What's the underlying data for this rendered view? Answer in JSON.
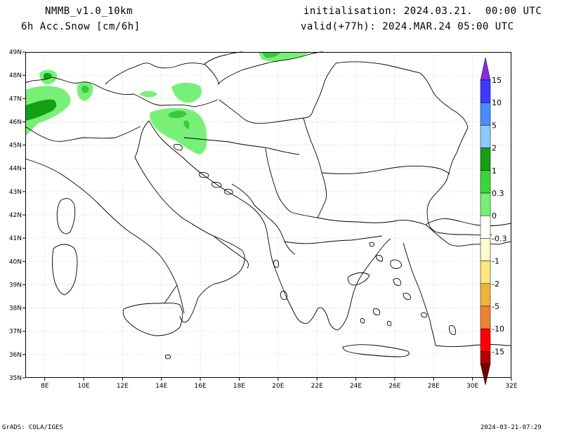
{
  "header": {
    "model": "NMMB_v1.0_10km",
    "variable": "6h Acc.Snow [cm/6h]",
    "init": "initialisation: 2024.03.21.  00:00 UTC",
    "valid": "valid(+77h): 2024.MAR.24 05:00 UTC"
  },
  "footer": {
    "left": "GrADS: COLA/IGES",
    "right": "2024-03-21-07:29"
  },
  "axes": {
    "lon_ticks": [
      "8E",
      "10E",
      "12E",
      "14E",
      "16E",
      "18E",
      "20E",
      "22E",
      "24E",
      "26E",
      "28E",
      "30E",
      "32E"
    ],
    "lat_ticks": [
      "49N",
      "48N",
      "47N",
      "46N",
      "45N",
      "44N",
      "43N",
      "42N",
      "41N",
      "40N",
      "39N",
      "38N",
      "37N",
      "36N",
      "35N"
    ]
  },
  "colorbar": {
    "levels": [
      {
        "label": "15",
        "color": "#8a2be2"
      },
      {
        "label": "10",
        "color": "#3a3aff"
      },
      {
        "label": "5",
        "color": "#4a8cff"
      },
      {
        "label": "2",
        "color": "#8ccbff"
      },
      {
        "label": "1",
        "color": "#14a014"
      },
      {
        "label": "0.3",
        "color": "#39d639"
      },
      {
        "label": "0",
        "color": "#78f078"
      },
      {
        "label": "-0.3",
        "color": "#ffffff"
      },
      {
        "label": "-1",
        "color": "#fffbcc"
      },
      {
        "label": "-2",
        "color": "#ffe680"
      },
      {
        "label": "-5",
        "color": "#f0b43c"
      },
      {
        "label": "-10",
        "color": "#f08232"
      },
      {
        "label": "-15",
        "color": "#ff0000"
      }
    ],
    "bottom_color": "#b40000",
    "bottom_tip_color": "#780000"
  },
  "map": {
    "extent_lon": [
      7,
      32
    ],
    "extent_lat": [
      35,
      49
    ],
    "snow_colors": {
      "light": "#78f078",
      "mid": "#3cc83c",
      "dark": "#14a014"
    }
  }
}
